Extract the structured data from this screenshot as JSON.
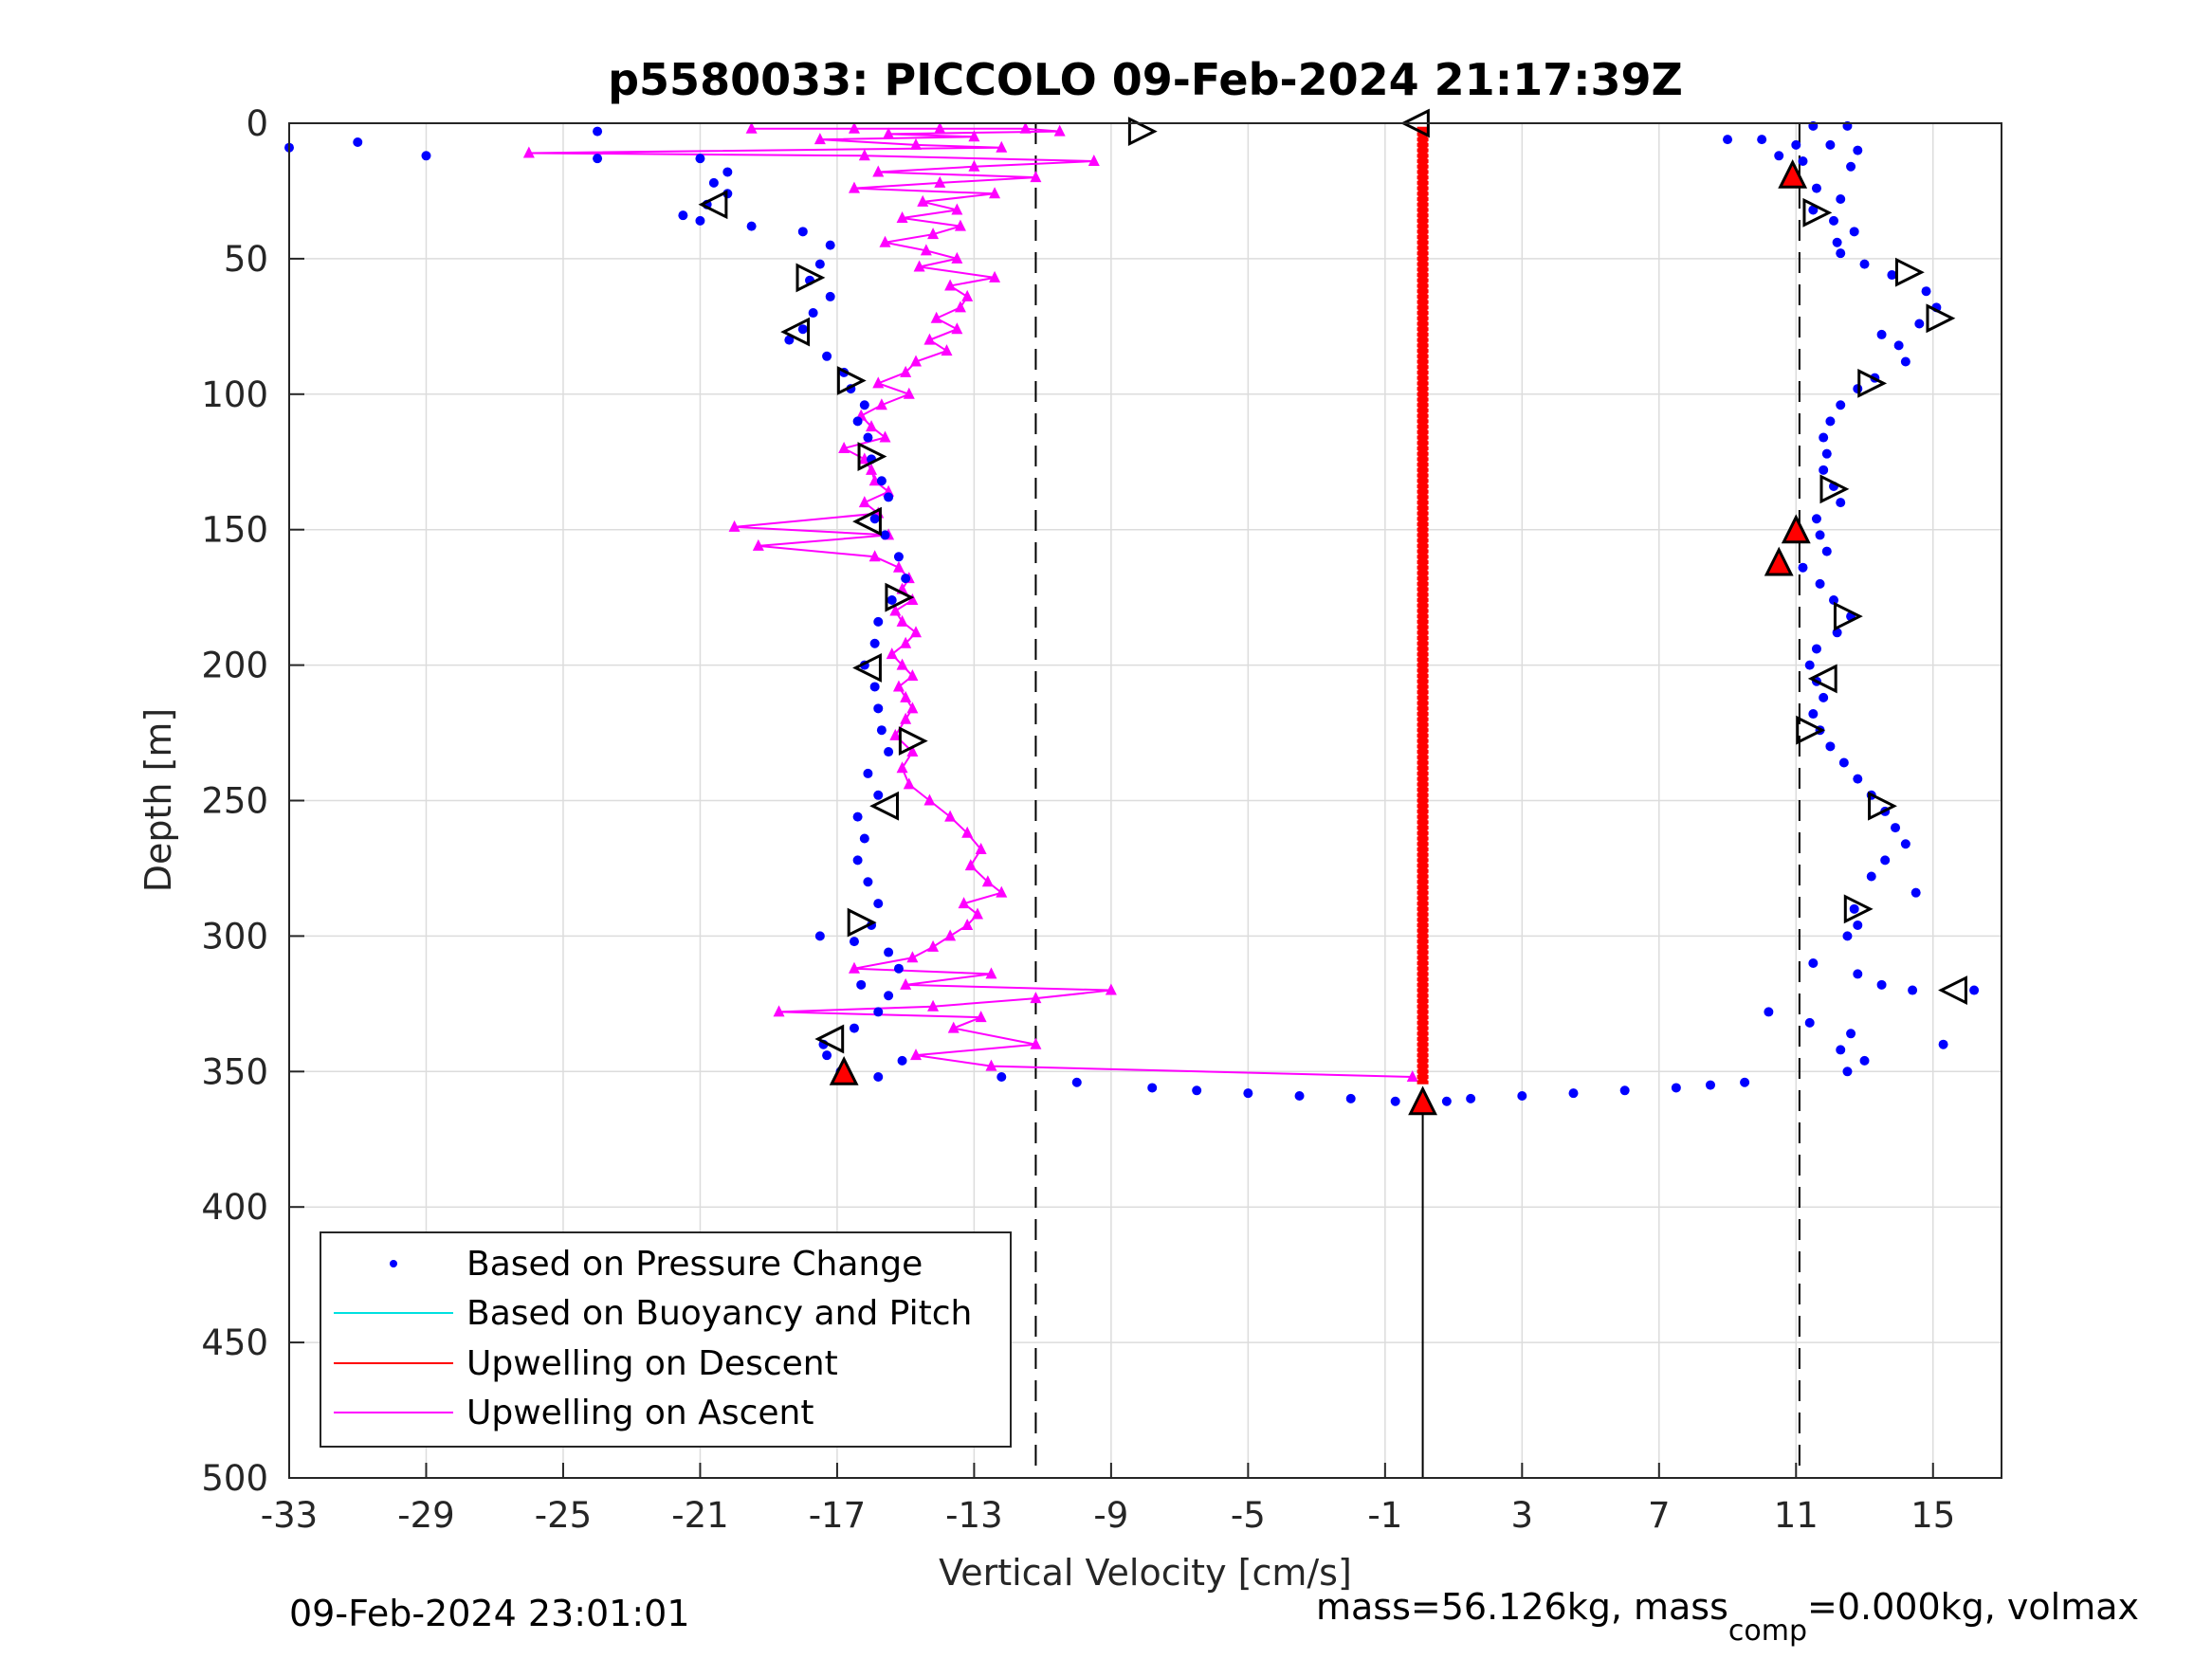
{
  "chart_data": {
    "type": "scatter",
    "title": "p5580033: PICCOLO 09-Feb-2024 21:17:39Z",
    "xlabel": "Vertical Velocity [cm/s]",
    "ylabel": "Depth [m]",
    "xlim": [
      -33,
      17
    ],
    "ylim": [
      0,
      500
    ],
    "y_reversed": true,
    "grid": true,
    "xticks": [
      -33,
      -29,
      -25,
      -21,
      -17,
      -13,
      -9,
      -5,
      -1,
      3,
      7,
      11,
      15
    ],
    "xtick_labels": [
      "-33",
      "-29",
      "-25",
      "-21",
      "-17",
      "-13",
      "-9",
      "-5",
      "-1",
      "3",
      "7",
      "11",
      "15"
    ],
    "yticks": [
      0,
      50,
      100,
      150,
      200,
      250,
      300,
      350,
      400,
      450,
      500
    ],
    "ytick_labels": [
      "0",
      "50",
      "100",
      "150",
      "200",
      "250",
      "300",
      "350",
      "400",
      "450",
      "500"
    ],
    "reference_lines": {
      "dashed_x": [
        -11.2,
        11.1
      ],
      "solid_x": 0.1,
      "solid_y_range": [
        360,
        500
      ]
    },
    "legend": {
      "position": "bottom-left",
      "entries": [
        {
          "label": "Based on Pressure Change",
          "color": "#0000ff",
          "style": "dot"
        },
        {
          "label": "Based on Buoyancy and Pitch",
          "color": "#00e0e0",
          "style": "line"
        },
        {
          "label": "Upwelling on Descent",
          "color": "#ff0000",
          "style": "line"
        },
        {
          "label": "Upwelling on Ascent",
          "color": "#ff00ff",
          "style": "line"
        }
      ]
    },
    "series": [
      {
        "name": "Based on Pressure Change (descent)",
        "color": "#0000ff",
        "points": [
          [
            11.5,
            1
          ],
          [
            12.5,
            1
          ],
          [
            9,
            6
          ],
          [
            10,
            6
          ],
          [
            11,
            8
          ],
          [
            12,
            8
          ],
          [
            12.8,
            10
          ],
          [
            10.5,
            12
          ],
          [
            11.2,
            14
          ],
          [
            12.6,
            16
          ],
          [
            11,
            20
          ],
          [
            11.6,
            24
          ],
          [
            12.3,
            28
          ],
          [
            11.5,
            32
          ],
          [
            12.1,
            36
          ],
          [
            12.7,
            40
          ],
          [
            12.2,
            44
          ],
          [
            12.3,
            48
          ],
          [
            13,
            52
          ],
          [
            13.8,
            56
          ],
          [
            14.8,
            62
          ],
          [
            15.1,
            68
          ],
          [
            14.6,
            74
          ],
          [
            13.5,
            78
          ],
          [
            14,
            82
          ],
          [
            14.2,
            88
          ],
          [
            13.3,
            94
          ],
          [
            12.8,
            98
          ],
          [
            12.3,
            104
          ],
          [
            12,
            110
          ],
          [
            11.8,
            116
          ],
          [
            11.9,
            122
          ],
          [
            11.8,
            128
          ],
          [
            12.1,
            134
          ],
          [
            12.3,
            140
          ],
          [
            11.6,
            146
          ],
          [
            11.7,
            152
          ],
          [
            11.9,
            158
          ],
          [
            11.2,
            164
          ],
          [
            11.7,
            170
          ],
          [
            12.1,
            176
          ],
          [
            12.6,
            182
          ],
          [
            12.2,
            188
          ],
          [
            11.6,
            194
          ],
          [
            11.4,
            200
          ],
          [
            11.6,
            206
          ],
          [
            11.8,
            212
          ],
          [
            11.5,
            218
          ],
          [
            11.7,
            224
          ],
          [
            12,
            230
          ],
          [
            12.4,
            236
          ],
          [
            12.8,
            242
          ],
          [
            13.2,
            248
          ],
          [
            13.6,
            254
          ],
          [
            13.9,
            260
          ],
          [
            14.2,
            266
          ],
          [
            13.6,
            272
          ],
          [
            13.2,
            278
          ],
          [
            14.5,
            284
          ],
          [
            12.7,
            290
          ],
          [
            12.8,
            296
          ],
          [
            12.5,
            300
          ],
          [
            11.5,
            310
          ],
          [
            12.8,
            314
          ],
          [
            13.5,
            318
          ],
          [
            14.4,
            320
          ],
          [
            16.2,
            320
          ],
          [
            10.2,
            328
          ],
          [
            11.4,
            332
          ],
          [
            12.6,
            336
          ],
          [
            12.3,
            342
          ],
          [
            15.3,
            340
          ],
          [
            13,
            346
          ],
          [
            12.5,
            350
          ],
          [
            9.5,
            354
          ],
          [
            8.5,
            355
          ],
          [
            7.5,
            356
          ],
          [
            6,
            357
          ],
          [
            4.5,
            358
          ],
          [
            3,
            359
          ],
          [
            1.5,
            360
          ],
          [
            0.8,
            361
          ]
        ]
      },
      {
        "name": "Based on Pressure Change (ascent)",
        "color": "#0000ff",
        "points": [
          [
            -33,
            9
          ],
          [
            -31,
            7
          ],
          [
            -29,
            12
          ],
          [
            -24,
            3
          ],
          [
            -24,
            13
          ],
          [
            -21,
            13
          ],
          [
            -20.2,
            18
          ],
          [
            -20.6,
            22
          ],
          [
            -20.2,
            26
          ],
          [
            -20.8,
            30
          ],
          [
            -21.5,
            34
          ],
          [
            -21,
            36
          ],
          [
            -19.5,
            38
          ],
          [
            -18,
            40
          ],
          [
            -17.2,
            45
          ],
          [
            -17.5,
            52
          ],
          [
            -17.8,
            58
          ],
          [
            -17.2,
            64
          ],
          [
            -17.7,
            70
          ],
          [
            -18,
            76
          ],
          [
            -18.4,
            80
          ],
          [
            -17.3,
            86
          ],
          [
            -16.8,
            92
          ],
          [
            -16.6,
            98
          ],
          [
            -16.2,
            104
          ],
          [
            -16.4,
            110
          ],
          [
            -16.1,
            116
          ],
          [
            -16,
            124
          ],
          [
            -15.7,
            132
          ],
          [
            -15.5,
            138
          ],
          [
            -15.9,
            146
          ],
          [
            -15.6,
            152
          ],
          [
            -15.2,
            160
          ],
          [
            -15.0,
            168
          ],
          [
            -15.4,
            176
          ],
          [
            -15.8,
            184
          ],
          [
            -15.9,
            192
          ],
          [
            -16.2,
            200
          ],
          [
            -15.9,
            208
          ],
          [
            -15.8,
            216
          ],
          [
            -15.7,
            224
          ],
          [
            -15.5,
            232
          ],
          [
            -16.1,
            240
          ],
          [
            -15.8,
            248
          ],
          [
            -16.4,
            256
          ],
          [
            -16.2,
            264
          ],
          [
            -16.4,
            272
          ],
          [
            -16.1,
            280
          ],
          [
            -15.8,
            288
          ],
          [
            -16,
            296
          ],
          [
            -17.5,
            300
          ],
          [
            -16.5,
            302
          ],
          [
            -15.5,
            306
          ],
          [
            -15.2,
            312
          ],
          [
            -16.3,
            318
          ],
          [
            -15.5,
            322
          ],
          [
            -15.8,
            328
          ],
          [
            -16.5,
            334
          ],
          [
            -17.4,
            340
          ],
          [
            -17.3,
            344
          ],
          [
            -15.1,
            346
          ],
          [
            -16.9,
            350
          ],
          [
            -15.8,
            352
          ],
          [
            -12.2,
            352
          ],
          [
            -10,
            354
          ],
          [
            -7.8,
            356
          ],
          [
            -6.5,
            357
          ],
          [
            -5,
            358
          ],
          [
            -3.5,
            359
          ],
          [
            -2,
            360
          ],
          [
            -0.7,
            361
          ]
        ]
      },
      {
        "name": "Upwelling on Descent",
        "color": "#ff0000",
        "x_constant": 0.1,
        "depth_range": [
          2,
          354
        ]
      },
      {
        "name": "Upwelling on Ascent",
        "color": "#ff00ff",
        "points": [
          [
            -19.5,
            2
          ],
          [
            -16.5,
            2
          ],
          [
            -14,
            2
          ],
          [
            -11.5,
            2
          ],
          [
            -10.5,
            3
          ],
          [
            -15.5,
            4
          ],
          [
            -13,
            5
          ],
          [
            -17.5,
            6
          ],
          [
            -14.7,
            8
          ],
          [
            -12.2,
            9
          ],
          [
            -26,
            11
          ],
          [
            -16.2,
            12
          ],
          [
            -9.5,
            14
          ],
          [
            -13,
            16
          ],
          [
            -15.8,
            18
          ],
          [
            -11.2,
            20
          ],
          [
            -14,
            22
          ],
          [
            -16.5,
            24
          ],
          [
            -12.4,
            26
          ],
          [
            -14.5,
            29
          ],
          [
            -13.5,
            32
          ],
          [
            -15.1,
            35
          ],
          [
            -13.4,
            38
          ],
          [
            -14.2,
            41
          ],
          [
            -15.6,
            44
          ],
          [
            -14.4,
            47
          ],
          [
            -13.5,
            50
          ],
          [
            -14.6,
            53
          ],
          [
            -12.4,
            57
          ],
          [
            -13.7,
            60
          ],
          [
            -13.2,
            64
          ],
          [
            -13.4,
            68
          ],
          [
            -14.1,
            72
          ],
          [
            -13.5,
            76
          ],
          [
            -14.3,
            80
          ],
          [
            -13.8,
            84
          ],
          [
            -14.7,
            88
          ],
          [
            -15,
            92
          ],
          [
            -15.8,
            96
          ],
          [
            -14.9,
            100
          ],
          [
            -15.7,
            104
          ],
          [
            -16.3,
            108
          ],
          [
            -16,
            112
          ],
          [
            -15.6,
            116
          ],
          [
            -16.8,
            120
          ],
          [
            -16.2,
            124
          ],
          [
            -16,
            128
          ],
          [
            -15.9,
            132
          ],
          [
            -15.5,
            136
          ],
          [
            -16.2,
            140
          ],
          [
            -15.8,
            144
          ],
          [
            -20,
            149
          ],
          [
            -15.5,
            152
          ],
          [
            -19.3,
            156
          ],
          [
            -15.9,
            160
          ],
          [
            -15.2,
            164
          ],
          [
            -14.9,
            168
          ],
          [
            -15.1,
            172
          ],
          [
            -14.8,
            176
          ],
          [
            -15.3,
            180
          ],
          [
            -15.1,
            184
          ],
          [
            -14.7,
            188
          ],
          [
            -15,
            192
          ],
          [
            -15.4,
            196
          ],
          [
            -15.1,
            200
          ],
          [
            -14.8,
            204
          ],
          [
            -15.2,
            208
          ],
          [
            -15,
            212
          ],
          [
            -14.8,
            216
          ],
          [
            -15,
            220
          ],
          [
            -15.3,
            226
          ],
          [
            -14.8,
            232
          ],
          [
            -15.1,
            238
          ],
          [
            -14.9,
            244
          ],
          [
            -14.3,
            250
          ],
          [
            -13.7,
            256
          ],
          [
            -13.2,
            262
          ],
          [
            -12.8,
            268
          ],
          [
            -13.1,
            274
          ],
          [
            -12.6,
            280
          ],
          [
            -12.2,
            284
          ],
          [
            -13.3,
            288
          ],
          [
            -12.9,
            292
          ],
          [
            -13.2,
            296
          ],
          [
            -13.7,
            300
          ],
          [
            -14.2,
            304
          ],
          [
            -14.8,
            308
          ],
          [
            -16.5,
            312
          ],
          [
            -12.5,
            314
          ],
          [
            -15,
            318
          ],
          [
            -9,
            320
          ],
          [
            -11.2,
            323
          ],
          [
            -14.2,
            326
          ],
          [
            -18.7,
            328
          ],
          [
            -12.8,
            330
          ],
          [
            -13.6,
            334
          ],
          [
            -11.2,
            340
          ],
          [
            -14.7,
            344
          ],
          [
            -12.5,
            348
          ],
          [
            -0.2,
            352
          ]
        ]
      }
    ],
    "markers": {
      "right_triangles_open": [
        [
          -8.1,
          3
        ],
        [
          -17.8,
          57
        ],
        [
          -16.6,
          95
        ],
        [
          -16,
          123
        ],
        [
          -15.2,
          175
        ],
        [
          -14.8,
          228
        ],
        [
          -16.3,
          295
        ],
        [
          11.6,
          33
        ],
        [
          14.3,
          55
        ],
        [
          15.2,
          72
        ],
        [
          13.2,
          96
        ],
        [
          12.1,
          135
        ],
        [
          12.5,
          182
        ],
        [
          11.4,
          224
        ],
        [
          13.5,
          252
        ],
        [
          12.8,
          290
        ]
      ],
      "left_triangles_open": [
        [
          -0.1,
          0
        ],
        [
          -20.6,
          30
        ],
        [
          -18.2,
          77
        ],
        [
          -16.1,
          147
        ],
        [
          -16.1,
          201
        ],
        [
          -15.6,
          252
        ],
        [
          -17.2,
          338
        ],
        [
          11.8,
          205
        ],
        [
          15.6,
          320
        ]
      ],
      "red_filled_triangles": [
        [
          10.9,
          19
        ],
        [
          11.0,
          150
        ],
        [
          10.5,
          162
        ],
        [
          -16.8,
          350
        ],
        [
          0.1,
          361
        ]
      ]
    }
  },
  "footer": {
    "left": "09-Feb-2024 23:01:01",
    "right_prefix": "mass=56.126kg, mass",
    "right_sub": "comp",
    "right_suffix": "=0.000kg, volmax"
  }
}
